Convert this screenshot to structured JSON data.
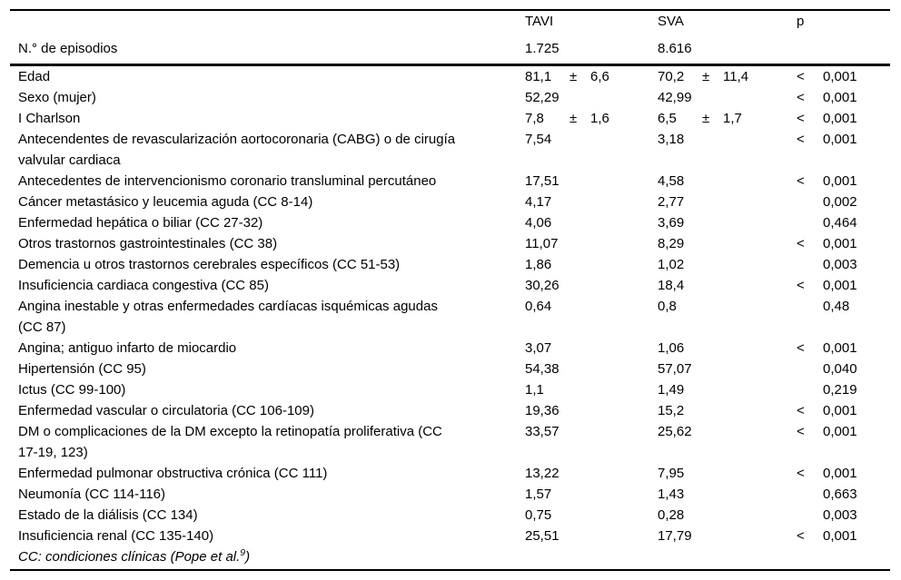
{
  "table": {
    "header": {
      "tavi": "TAVI",
      "sva": "SVA",
      "p": "p"
    },
    "subheader": {
      "label": "N.° de episodios",
      "tavi": "1.725",
      "sva": "8.616"
    },
    "rows": [
      {
        "label": "Edad",
        "tavi_mean": "81,1",
        "tavi_pm": "±",
        "tavi_sd": "6,6",
        "sva_mean": "70,2",
        "sva_pm": "±",
        "sva_sd": "11,4",
        "p_sign": "<",
        "p_value": "0,001"
      },
      {
        "label": "Sexo (mujer)",
        "tavi_mean": "52,29",
        "sva_mean": "42,99",
        "p_sign": "<",
        "p_value": "0,001"
      },
      {
        "label": "I Charlson",
        "tavi_mean": "7,8",
        "tavi_pm": "±",
        "tavi_sd": "1,6",
        "sva_mean": "6,5",
        "sva_pm": "±",
        "sva_sd": "1,7",
        "p_sign": "<",
        "p_value": "0,001"
      },
      {
        "label": "Antecendentes de revascularización aortocoronaria (CABG) o de cirugía\nvalvular cardiaca",
        "tavi_mean": "7,54",
        "sva_mean": "3,18",
        "p_sign": "<",
        "p_value": "0,001"
      },
      {
        "label": "Antecedentes de intervencionismo coronario transluminal percutáneo",
        "tavi_mean": "17,51",
        "sva_mean": "4,58",
        "p_sign": "<",
        "p_value": "0,001"
      },
      {
        "label": "Cáncer metastásico y leucemia aguda (CC 8-14)",
        "tavi_mean": "4,17",
        "sva_mean": "2,77",
        "p_value": "0,002"
      },
      {
        "label": "Enfermedad hepática o biliar (CC 27-32)",
        "tavi_mean": "4,06",
        "sva_mean": "3,69",
        "p_value": "0,464"
      },
      {
        "label": "Otros trastornos gastrointestinales (CC 38)",
        "tavi_mean": "11,07",
        "sva_mean": "8,29",
        "p_sign": "<",
        "p_value": "0,001"
      },
      {
        "label": "Demencia u otros trastornos cerebrales específicos (CC 51-53)",
        "tavi_mean": "1,86",
        "sva_mean": "1,02",
        "p_value": "0,003"
      },
      {
        "label": "Insuficiencia cardiaca congestiva (CC 85)",
        "tavi_mean": "30,26",
        "sva_mean": "18,4",
        "p_sign": "<",
        "p_value": "0,001"
      },
      {
        "label": "Angina inestable y otras enfermedades cardíacas isquémicas agudas\n(CC 87)",
        "tavi_mean": "0,64",
        "sva_mean": "0,8",
        "p_value": "0,48"
      },
      {
        "label": "Angina; antiguo infarto de miocardio",
        "tavi_mean": "3,07",
        "sva_mean": "1,06",
        "p_sign": "<",
        "p_value": "0,001"
      },
      {
        "label": "Hipertensión (CC 95)",
        "tavi_mean": "54,38",
        "sva_mean": "57,07",
        "p_value": "0,040"
      },
      {
        "label": "Ictus (CC 99-100)",
        "tavi_mean": "1,1",
        "sva_mean": "1,49",
        "p_value": "0,219"
      },
      {
        "label": "Enfermedad vascular o circulatoria (CC 106-109)",
        "tavi_mean": "19,36",
        "sva_mean": "15,2",
        "p_sign": "<",
        "p_value": "0,001"
      },
      {
        "label": "DM o complicaciones de la DM excepto la retinopatía proliferativa (CC\n17-19, 123)",
        "tavi_mean": "33,57",
        "sva_mean": "25,62",
        "p_sign": "<",
        "p_value": "0,001"
      },
      {
        "label": "Enfermedad pulmonar obstructiva crónica (CC 111)",
        "tavi_mean": "13,22",
        "sva_mean": "7,95",
        "p_sign": "<",
        "p_value": "0,001"
      },
      {
        "label": "Neumonía (CC 114-116)",
        "tavi_mean": "1,57",
        "sva_mean": "1,43",
        "p_value": "0,663"
      },
      {
        "label": "Estado de la diálisis (CC 134)",
        "tavi_mean": "0,75",
        "sva_mean": "0,28",
        "p_value": "0,003"
      },
      {
        "label": "Insuficiencia renal (CC 135-140)",
        "tavi_mean": "25,51",
        "sva_mean": "17,79",
        "p_sign": "<",
        "p_value": "0,001"
      }
    ],
    "footnote": {
      "prefix": "CC: condiciones clínicas (Pope et al.",
      "superscript": "9",
      "suffix": ")"
    }
  },
  "colors": {
    "text": "#000000",
    "border": "#000000",
    "background": "#ffffff"
  }
}
